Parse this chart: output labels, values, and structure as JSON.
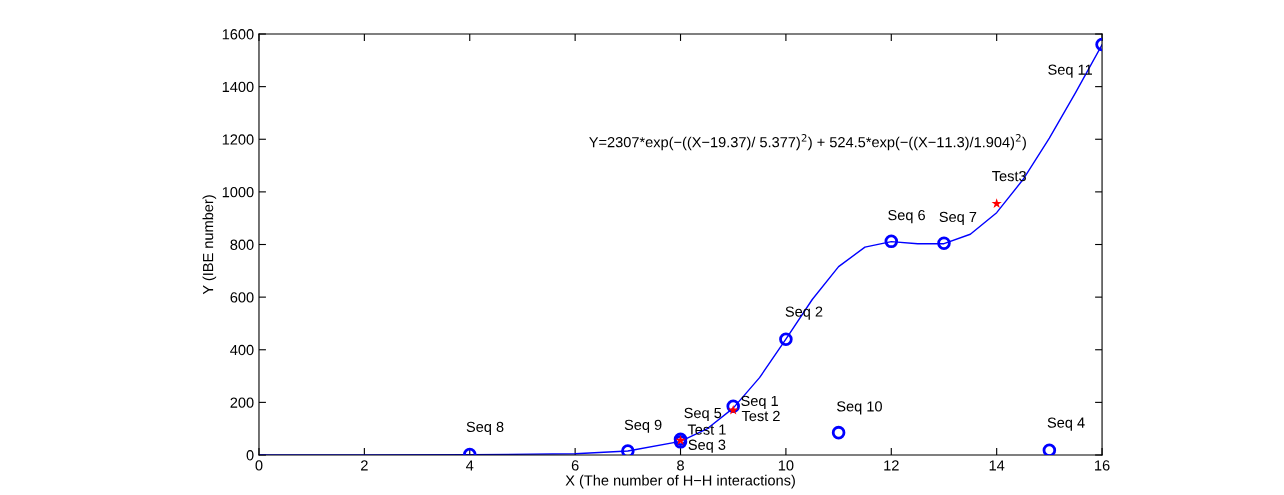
{
  "chart_data": {
    "type": "scatter",
    "xlabel": "X (The number of H−H interactions)",
    "ylabel": "Y (IBE number)",
    "xlim": [
      0,
      16
    ],
    "ylim": [
      0,
      1600
    ],
    "xticks": [
      0,
      2,
      4,
      6,
      8,
      10,
      12,
      14,
      16
    ],
    "yticks": [
      0,
      200,
      400,
      600,
      800,
      1000,
      1200,
      1400,
      1600
    ],
    "grid": false,
    "legend": false,
    "series": [
      {
        "type": "line",
        "color": "#0000ff",
        "marker": "none",
        "line_style": "solid",
        "x": [
          0,
          2,
          4,
          6,
          7,
          8,
          8.5,
          9,
          9.5,
          10,
          10.5,
          11,
          11.5,
          12,
          12.5,
          13,
          13.5,
          14,
          14.5,
          15,
          15.5,
          16
        ],
        "values": [
          0,
          0,
          1,
          5,
          15,
          52,
          99,
          178,
          294,
          440,
          591,
          716,
          790,
          811,
          803,
          803,
          839,
          921,
          1047,
          1204,
          1378,
          1559
        ]
      },
      {
        "color": "#0000ff",
        "marker": "circle",
        "x": [
          4,
          7,
          8,
          8,
          9,
          10,
          11,
          12,
          13,
          15,
          16
        ],
        "values": [
          2,
          15,
          60,
          50,
          185,
          440,
          85,
          812,
          805,
          18,
          1560
        ]
      },
      {
        "type": "scatter",
        "color": "#ff0000",
        "marker": "star",
        "x": [
          8,
          9,
          14
        ],
        "values": [
          55,
          170,
          955
        ]
      }
    ],
    "annotations": [
      "Y=2307*exp(−((X−19.37)/ 5.377)$^{2}$) + 524.5*exp(−((X−11.3)/1.904)$^{2}$)",
      {
        "text": "Seq 8",
        "x": 4,
        "y": 2
      },
      {
        "text": "Seq 9",
        "x": 7,
        "y": 15
      },
      {
        "text": "Seq 5",
        "x": 8,
        "y": 60
      },
      {
        "text": "Test 1",
        "x": 8,
        "y": 55
      },
      {
        "text": "Seq 3",
        "x": 8,
        "y": 50
      },
      {
        "text": "Seq 1",
        "x": 9,
        "y": 185
      },
      {
        "text": "Test 2",
        "x": 9,
        "y": 170
      },
      {
        "text": "Seq 2",
        "x": 10,
        "y": 440
      },
      {
        "text": "Seq 10",
        "x": 11,
        "y": 85
      },
      {
        "text": "Seq 6",
        "x": 12,
        "y": 812
      },
      {
        "text": "Seq 7",
        "x": 13,
        "y": 805
      },
      {
        "text": "Test3",
        "x": 14,
        "y": 955
      },
      {
        "text": "Seq 4",
        "x": 15,
        "y": 18
      },
      {
        "text": "Seq 11",
        "x": 16,
        "y": 1560
      }
    ]
  }
}
